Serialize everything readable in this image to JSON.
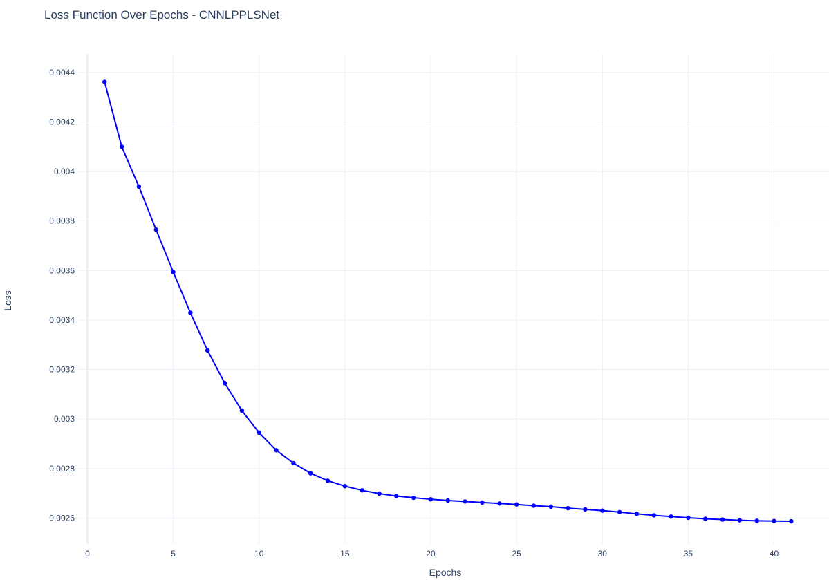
{
  "chart_data": {
    "type": "line",
    "title": "Loss Function Over Epochs - CNNLPPLSNet",
    "xlabel": "Epochs",
    "ylabel": "Loss",
    "xlim": [
      -0.5,
      43.2
    ],
    "ylim": [
      0.002495,
      0.004475
    ],
    "xticks": [
      0,
      5,
      10,
      15,
      20,
      25,
      30,
      35,
      40
    ],
    "yticks": [
      0.0026,
      0.0028,
      0.003,
      0.0032,
      0.0034,
      0.0036,
      0.0038,
      0.004,
      0.0042,
      0.0044
    ],
    "ytick_labels": [
      "0.0026",
      "0.0028",
      "0.003",
      "0.0032",
      "0.0034",
      "0.0036",
      "0.0038",
      "0.004",
      "0.0042",
      "0.0044"
    ],
    "grid": true,
    "series": [
      {
        "color": "#0000ff",
        "marker": "circle",
        "x": [
          1,
          2,
          3,
          4,
          5,
          6,
          7,
          8,
          9,
          10,
          11,
          12,
          13,
          14,
          15,
          16,
          17,
          18,
          19,
          20,
          21,
          22,
          23,
          24,
          25,
          26,
          27,
          28,
          29,
          30,
          31,
          32,
          33,
          34,
          35,
          36,
          37,
          38,
          39,
          40,
          41
        ],
        "y": [
          0.004362,
          0.0041,
          0.003939,
          0.003765,
          0.003594,
          0.003429,
          0.003277,
          0.003145,
          0.003034,
          0.002945,
          0.002874,
          0.002822,
          0.002781,
          0.002751,
          0.002729,
          0.002712,
          0.002699,
          0.002689,
          0.002682,
          0.002676,
          0.002671,
          0.002667,
          0.002663,
          0.002659,
          0.002655,
          0.00265,
          0.002646,
          0.00264,
          0.002635,
          0.00263,
          0.002624,
          0.002617,
          0.002611,
          0.002606,
          0.002601,
          0.002597,
          0.002594,
          0.002591,
          0.002589,
          0.002588,
          0.002587
        ]
      }
    ]
  }
}
